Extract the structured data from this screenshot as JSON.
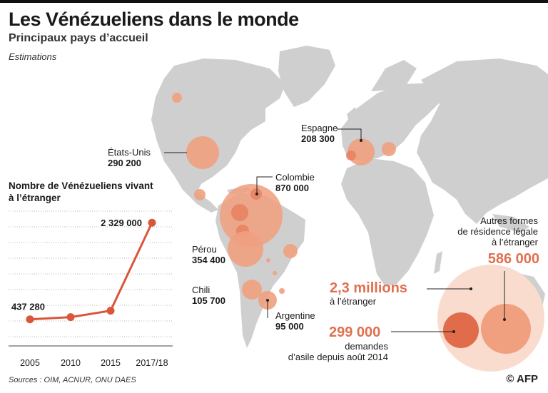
{
  "header": {
    "title": "Les Vénézueliens dans le monde",
    "subtitle": "Principaux pays d’accueil",
    "note": "Estimations"
  },
  "countries": [
    {
      "name": "États-Unis",
      "value": "290 200"
    },
    {
      "name": "Espagne",
      "value": "208 300"
    },
    {
      "name": "Colombie",
      "value": "870 000"
    },
    {
      "name": "Pérou",
      "value": "354 400"
    },
    {
      "name": "Chili",
      "value": "105 700"
    },
    {
      "name": "Argentine",
      "value": "95 000"
    }
  ],
  "chart_data": {
    "type": "line",
    "title": "Nombre de Vénézueliens vivant à l’étranger",
    "categories": [
      "2005",
      "2010",
      "2015",
      "2017/18"
    ],
    "values": [
      437280,
      480000,
      606000,
      2329000
    ],
    "data_labels": {
      "first": "437 280",
      "last": "2 329 000"
    },
    "ylim": [
      0,
      2500000
    ],
    "grid": true,
    "color": "#d9563a"
  },
  "summary": {
    "total_value": "2,3 millions",
    "total_label": "à l’étranger",
    "other_label_1": "Autres formes",
    "other_label_2": "de résidence légale",
    "other_label_3": "à l’étranger",
    "other_value": "586 000",
    "asylum_value": "299 000",
    "asylum_label_1": "demandes",
    "asylum_label_2": "d’asile depuis août 2014"
  },
  "colors": {
    "land": "#cfcfcf",
    "bubble": "#f0a07f",
    "bubble_dark": "#e06c4c",
    "accent": "#e07050",
    "summary_bg": "#f9dccd",
    "line": "#d9563a"
  },
  "footer": {
    "sources": "Sources : OIM, ACNUR, ONU DAES",
    "credit": "© AFP"
  }
}
